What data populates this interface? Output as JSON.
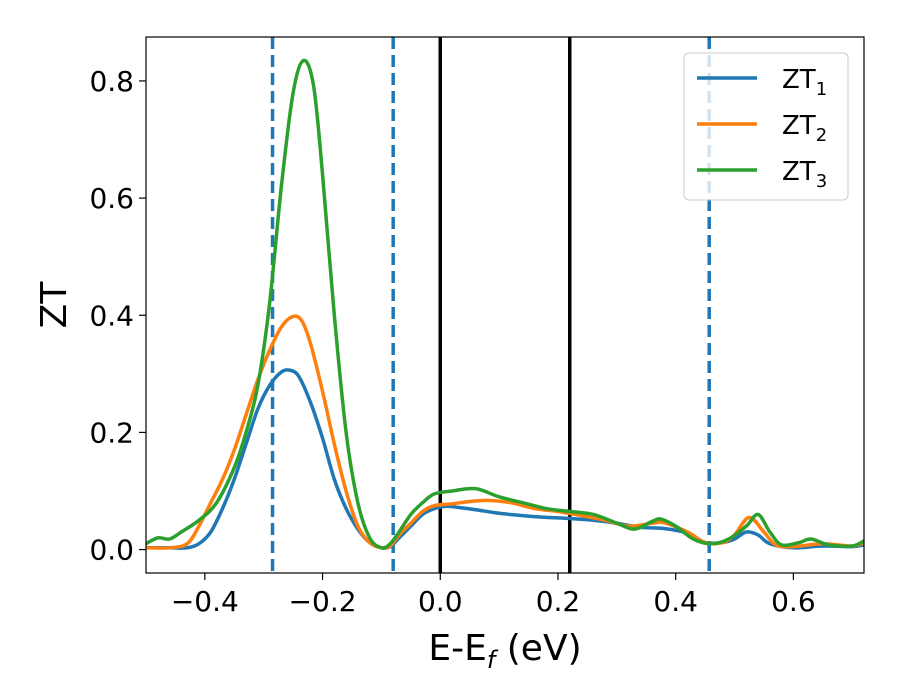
{
  "chart_data": {
    "type": "line",
    "xlabel_main": "E-E",
    "xlabel_sub": "f",
    "xlabel_unit": " (eV)",
    "ylabel": "ZT",
    "xlim": [
      -0.5,
      0.72
    ],
    "ylim": [
      -0.04,
      0.875
    ],
    "x_ticks": [
      -0.4,
      -0.2,
      0.0,
      0.2,
      0.4,
      0.6
    ],
    "x_tick_labels": [
      "−0.4",
      "−0.2",
      "0.0",
      "0.2",
      "0.4",
      "0.6"
    ],
    "y_ticks": [
      0.0,
      0.2,
      0.4,
      0.6,
      0.8
    ],
    "y_tick_labels": [
      "0.0",
      "0.2",
      "0.4",
      "0.6",
      "0.8"
    ],
    "grid": false,
    "legend_position": "top-right",
    "vertical_lines": [
      {
        "x": -0.285,
        "style": "dashed",
        "color": "#1f77b4"
      },
      {
        "x": -0.08,
        "style": "dashed",
        "color": "#1f77b4"
      },
      {
        "x": 0.0,
        "style": "solid",
        "color": "#000000"
      },
      {
        "x": 0.22,
        "style": "solid",
        "color": "#000000"
      },
      {
        "x": 0.457,
        "style": "dashed",
        "color": "#1f77b4"
      }
    ],
    "series": [
      {
        "name": "ZT",
        "sub": "1",
        "color": "#1f77b4",
        "points": [
          [
            -0.5,
            0.003
          ],
          [
            -0.46,
            0.003
          ],
          [
            -0.43,
            0.003
          ],
          [
            -0.41,
            0.01
          ],
          [
            -0.39,
            0.03
          ],
          [
            -0.37,
            0.07
          ],
          [
            -0.35,
            0.12
          ],
          [
            -0.33,
            0.18
          ],
          [
            -0.31,
            0.24
          ],
          [
            -0.29,
            0.28
          ],
          [
            -0.27,
            0.303
          ],
          [
            -0.255,
            0.306
          ],
          [
            -0.24,
            0.295
          ],
          [
            -0.22,
            0.25
          ],
          [
            -0.2,
            0.19
          ],
          [
            -0.18,
            0.12
          ],
          [
            -0.16,
            0.07
          ],
          [
            -0.14,
            0.035
          ],
          [
            -0.12,
            0.012
          ],
          [
            -0.1,
            0.003
          ],
          [
            -0.085,
            0.005
          ],
          [
            -0.07,
            0.02
          ],
          [
            -0.05,
            0.04
          ],
          [
            -0.03,
            0.06
          ],
          [
            -0.01,
            0.07
          ],
          [
            0.01,
            0.074
          ],
          [
            0.03,
            0.072
          ],
          [
            0.06,
            0.068
          ],
          [
            0.1,
            0.062
          ],
          [
            0.14,
            0.058
          ],
          [
            0.18,
            0.055
          ],
          [
            0.22,
            0.053
          ],
          [
            0.26,
            0.05
          ],
          [
            0.3,
            0.045
          ],
          [
            0.34,
            0.038
          ],
          [
            0.38,
            0.036
          ],
          [
            0.42,
            0.028
          ],
          [
            0.45,
            0.012
          ],
          [
            0.48,
            0.012
          ],
          [
            0.5,
            0.018
          ],
          [
            0.52,
            0.03
          ],
          [
            0.54,
            0.025
          ],
          [
            0.56,
            0.01
          ],
          [
            0.6,
            0.003
          ],
          [
            0.65,
            0.006
          ],
          [
            0.7,
            0.005
          ],
          [
            0.72,
            0.008
          ]
        ]
      },
      {
        "name": "ZT",
        "sub": "2",
        "color": "#ff7f0e",
        "points": [
          [
            -0.5,
            0.003
          ],
          [
            -0.46,
            0.003
          ],
          [
            -0.43,
            0.01
          ],
          [
            -0.41,
            0.04
          ],
          [
            -0.39,
            0.08
          ],
          [
            -0.37,
            0.12
          ],
          [
            -0.35,
            0.17
          ],
          [
            -0.33,
            0.23
          ],
          [
            -0.31,
            0.29
          ],
          [
            -0.29,
            0.34
          ],
          [
            -0.27,
            0.38
          ],
          [
            -0.25,
            0.398
          ],
          [
            -0.235,
            0.39
          ],
          [
            -0.22,
            0.35
          ],
          [
            -0.2,
            0.27
          ],
          [
            -0.18,
            0.18
          ],
          [
            -0.16,
            0.1
          ],
          [
            -0.14,
            0.04
          ],
          [
            -0.12,
            0.012
          ],
          [
            -0.1,
            0.003
          ],
          [
            -0.085,
            0.006
          ],
          [
            -0.07,
            0.025
          ],
          [
            -0.05,
            0.045
          ],
          [
            -0.03,
            0.065
          ],
          [
            -0.01,
            0.075
          ],
          [
            0.02,
            0.078
          ],
          [
            0.05,
            0.082
          ],
          [
            0.08,
            0.084
          ],
          [
            0.12,
            0.08
          ],
          [
            0.16,
            0.07
          ],
          [
            0.2,
            0.065
          ],
          [
            0.24,
            0.058
          ],
          [
            0.28,
            0.05
          ],
          [
            0.32,
            0.04
          ],
          [
            0.36,
            0.045
          ],
          [
            0.38,
            0.046
          ],
          [
            0.42,
            0.03
          ],
          [
            0.45,
            0.012
          ],
          [
            0.48,
            0.012
          ],
          [
            0.5,
            0.025
          ],
          [
            0.525,
            0.055
          ],
          [
            0.55,
            0.03
          ],
          [
            0.57,
            0.008
          ],
          [
            0.6,
            0.005
          ],
          [
            0.65,
            0.01
          ],
          [
            0.7,
            0.006
          ],
          [
            0.72,
            0.012
          ]
        ]
      },
      {
        "name": "ZT",
        "sub": "3",
        "color": "#2ca02c",
        "points": [
          [
            -0.5,
            0.01
          ],
          [
            -0.48,
            0.02
          ],
          [
            -0.46,
            0.018
          ],
          [
            -0.44,
            0.03
          ],
          [
            -0.41,
            0.05
          ],
          [
            -0.38,
            0.08
          ],
          [
            -0.35,
            0.14
          ],
          [
            -0.33,
            0.2
          ],
          [
            -0.31,
            0.28
          ],
          [
            -0.29,
            0.42
          ],
          [
            -0.27,
            0.62
          ],
          [
            -0.25,
            0.78
          ],
          [
            -0.232,
            0.835
          ],
          [
            -0.215,
            0.79
          ],
          [
            -0.2,
            0.64
          ],
          [
            -0.18,
            0.4
          ],
          [
            -0.16,
            0.2
          ],
          [
            -0.14,
            0.08
          ],
          [
            -0.12,
            0.02
          ],
          [
            -0.1,
            0.003
          ],
          [
            -0.085,
            0.01
          ],
          [
            -0.07,
            0.03
          ],
          [
            -0.05,
            0.06
          ],
          [
            -0.03,
            0.08
          ],
          [
            -0.01,
            0.095
          ],
          [
            0.02,
            0.1
          ],
          [
            0.06,
            0.104
          ],
          [
            0.1,
            0.09
          ],
          [
            0.14,
            0.08
          ],
          [
            0.18,
            0.07
          ],
          [
            0.22,
            0.065
          ],
          [
            0.26,
            0.06
          ],
          [
            0.3,
            0.045
          ],
          [
            0.33,
            0.035
          ],
          [
            0.36,
            0.048
          ],
          [
            0.375,
            0.052
          ],
          [
            0.4,
            0.04
          ],
          [
            0.43,
            0.018
          ],
          [
            0.46,
            0.01
          ],
          [
            0.49,
            0.018
          ],
          [
            0.52,
            0.04
          ],
          [
            0.54,
            0.06
          ],
          [
            0.56,
            0.03
          ],
          [
            0.58,
            0.008
          ],
          [
            0.61,
            0.012
          ],
          [
            0.63,
            0.018
          ],
          [
            0.66,
            0.008
          ],
          [
            0.7,
            0.006
          ],
          [
            0.72,
            0.015
          ]
        ]
      }
    ]
  }
}
